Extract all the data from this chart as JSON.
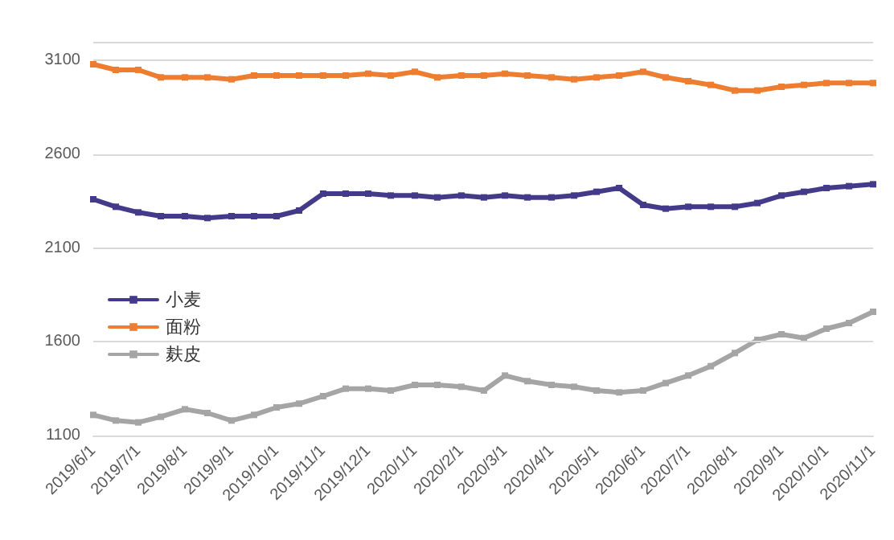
{
  "chart_data": {
    "type": "line",
    "x": [
      "2019-06-01",
      "2019-06-16",
      "2019-07-01",
      "2019-07-16",
      "2019-08-01",
      "2019-08-16",
      "2019-09-01",
      "2019-09-16",
      "2019-10-01",
      "2019-10-16",
      "2019-11-01",
      "2019-11-16",
      "2019-12-01",
      "2019-12-16",
      "2020-01-01",
      "2020-01-16",
      "2020-02-01",
      "2020-02-16",
      "2020-03-01",
      "2020-03-16",
      "2020-04-01",
      "2020-04-16",
      "2020-05-01",
      "2020-05-16",
      "2020-06-01",
      "2020-06-16",
      "2020-07-01",
      "2020-07-16",
      "2020-08-01",
      "2020-08-16",
      "2020-09-01",
      "2020-09-16",
      "2020-10-01",
      "2020-10-16",
      "2020-11-01"
    ],
    "series": [
      {
        "name": "小麦",
        "color": "#433a8a",
        "values": [
          2360,
          2320,
          2290,
          2270,
          2270,
          2260,
          2270,
          2270,
          2270,
          2300,
          2390,
          2390,
          2390,
          2380,
          2380,
          2370,
          2380,
          2370,
          2380,
          2370,
          2370,
          2380,
          2400,
          2420,
          2330,
          2310,
          2320,
          2320,
          2320,
          2340,
          2380,
          2400,
          2420,
          2430,
          2440
        ]
      },
      {
        "name": "面粉",
        "color": "#ed7d31",
        "values": [
          3080,
          3050,
          3050,
          3010,
          3010,
          3010,
          3000,
          3020,
          3020,
          3020,
          3020,
          3020,
          3030,
          3020,
          3040,
          3010,
          3020,
          3020,
          3030,
          3020,
          3010,
          3000,
          3010,
          3020,
          3040,
          3010,
          2990,
          2970,
          2940,
          2940,
          2960,
          2970,
          2980,
          2980,
          2980
        ]
      },
      {
        "name": "麸皮",
        "color": "#a5a5a5",
        "values": [
          1210,
          1180,
          1170,
          1200,
          1240,
          1220,
          1180,
          1210,
          1250,
          1270,
          1310,
          1350,
          1350,
          1340,
          1370,
          1370,
          1360,
          1340,
          1420,
          1390,
          1370,
          1360,
          1340,
          1330,
          1340,
          1380,
          1420,
          1470,
          1540,
          1610,
          1640,
          1620,
          1670,
          1700,
          1760
        ]
      }
    ],
    "xlim": [
      "2019-06-01",
      "2020-11-01"
    ],
    "xticks": [
      {
        "value": "2019-06-01",
        "label": "2019/6/1"
      },
      {
        "value": "2019-07-01",
        "label": "2019/7/1"
      },
      {
        "value": "2019-08-01",
        "label": "2019/8/1"
      },
      {
        "value": "2019-09-01",
        "label": "2019/9/1"
      },
      {
        "value": "2019-10-01",
        "label": "2019/10/1"
      },
      {
        "value": "2019-11-01",
        "label": "2019/11/1"
      },
      {
        "value": "2019-12-01",
        "label": "2019/12/1"
      },
      {
        "value": "2020-01-01",
        "label": "2020/1/1"
      },
      {
        "value": "2020-02-01",
        "label": "2020/2/1"
      },
      {
        "value": "2020-03-01",
        "label": "2020/3/1"
      },
      {
        "value": "2020-04-01",
        "label": "2020/4/1"
      },
      {
        "value": "2020-05-01",
        "label": "2020/5/1"
      },
      {
        "value": "2020-06-01",
        "label": "2020/6/1"
      },
      {
        "value": "2020-07-01",
        "label": "2020/7/1"
      },
      {
        "value": "2020-08-01",
        "label": "2020/8/1"
      },
      {
        "value": "2020-09-01",
        "label": "2020/9/1"
      },
      {
        "value": "2020-10-01",
        "label": "2020/10/1"
      },
      {
        "value": "2020-11-01",
        "label": "2020/11/1"
      }
    ],
    "ylim": [
      1100,
      3200
    ],
    "yticks": [
      1100,
      1600,
      2100,
      2600,
      3100,
      {
        "value": 3200,
        "label": null
      }
    ],
    "grid": "y",
    "legend": "left",
    "marker": "square",
    "line_style": "solid"
  }
}
